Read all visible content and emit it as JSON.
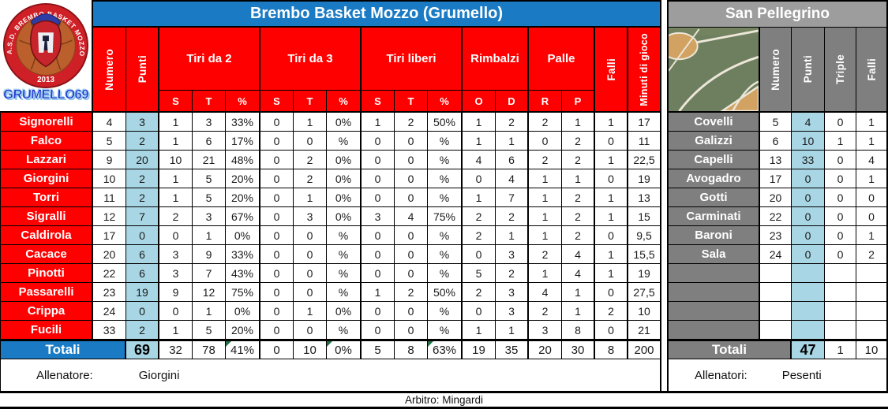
{
  "left_team": {
    "title": "Brembo Basket Mozzo (Grumello)",
    "logo": {
      "ring_text": "A.S.D. BREMBO BASKET MOZZO B.B.M.",
      "year": "2013",
      "club_name": "GRUMELLO69"
    },
    "col_headers": {
      "numero": "Numero",
      "punti": "Punti",
      "falli": "Falli",
      "minuti": "Minuti di gioco"
    },
    "groups": [
      {
        "label": "Tiri da 2",
        "subs": [
          "S",
          "T",
          "%"
        ]
      },
      {
        "label": "Tiri da 3",
        "subs": [
          "S",
          "T",
          "%"
        ]
      },
      {
        "label": "Tiri liberi",
        "subs": [
          "S",
          "T",
          "%"
        ]
      },
      {
        "label": "Rimbalzi",
        "subs": [
          "O",
          "D"
        ]
      },
      {
        "label": "Palle",
        "subs": [
          "R",
          "P"
        ]
      }
    ],
    "players": [
      {
        "name": "Signorelli",
        "vals": [
          "4",
          "3",
          "1",
          "3",
          "33%",
          "0",
          "1",
          "0%",
          "1",
          "2",
          "50%",
          "1",
          "2",
          "2",
          "1",
          "1",
          "17"
        ]
      },
      {
        "name": "Falco",
        "vals": [
          "5",
          "2",
          "1",
          "6",
          "17%",
          "0",
          "0",
          "%",
          "0",
          "0",
          "%",
          "1",
          "1",
          "0",
          "2",
          "0",
          "11"
        ]
      },
      {
        "name": "Lazzari",
        "vals": [
          "9",
          "20",
          "10",
          "21",
          "48%",
          "0",
          "2",
          "0%",
          "0",
          "0",
          "%",
          "4",
          "6",
          "2",
          "2",
          "1",
          "22,5"
        ]
      },
      {
        "name": "Giorgini",
        "vals": [
          "10",
          "2",
          "1",
          "5",
          "20%",
          "0",
          "2",
          "0%",
          "0",
          "0",
          "%",
          "0",
          "4",
          "1",
          "1",
          "0",
          "19"
        ]
      },
      {
        "name": "Torri",
        "vals": [
          "11",
          "2",
          "1",
          "5",
          "20%",
          "0",
          "1",
          "0%",
          "0",
          "0",
          "%",
          "1",
          "7",
          "1",
          "2",
          "1",
          "13"
        ]
      },
      {
        "name": "Sigralli",
        "vals": [
          "12",
          "7",
          "2",
          "3",
          "67%",
          "0",
          "3",
          "0%",
          "3",
          "4",
          "75%",
          "2",
          "2",
          "1",
          "2",
          "1",
          "15"
        ]
      },
      {
        "name": "Caldirola",
        "vals": [
          "17",
          "0",
          "0",
          "1",
          "0%",
          "0",
          "0",
          "%",
          "0",
          "0",
          "%",
          "2",
          "1",
          "1",
          "2",
          "0",
          "9,5"
        ]
      },
      {
        "name": "Cacace",
        "vals": [
          "20",
          "6",
          "3",
          "9",
          "33%",
          "0",
          "0",
          "%",
          "0",
          "0",
          "%",
          "0",
          "3",
          "2",
          "4",
          "1",
          "15,5"
        ]
      },
      {
        "name": "Pinotti",
        "vals": [
          "22",
          "6",
          "3",
          "7",
          "43%",
          "0",
          "0",
          "%",
          "0",
          "0",
          "%",
          "5",
          "2",
          "1",
          "4",
          "1",
          "19"
        ]
      },
      {
        "name": "Passarelli",
        "vals": [
          "23",
          "19",
          "9",
          "12",
          "75%",
          "0",
          "0",
          "%",
          "1",
          "2",
          "50%",
          "2",
          "3",
          "4",
          "1",
          "0",
          "27,5"
        ]
      },
      {
        "name": "Crippa",
        "vals": [
          "24",
          "0",
          "0",
          "1",
          "0%",
          "0",
          "1",
          "0%",
          "0",
          "0",
          "%",
          "0",
          "3",
          "2",
          "1",
          "2",
          "10"
        ]
      },
      {
        "name": "Fucili",
        "vals": [
          "33",
          "2",
          "1",
          "5",
          "20%",
          "0",
          "0",
          "%",
          "0",
          "0",
          "%",
          "1",
          "1",
          "3",
          "8",
          "0",
          "21"
        ]
      }
    ],
    "totals": {
      "label": "Totali",
      "punti": "69",
      "vals": [
        "32",
        "78",
        "41%",
        "0",
        "10",
        "0%",
        "5",
        "8",
        "63%",
        "19",
        "35",
        "20",
        "30",
        "8",
        "200"
      ]
    },
    "coach_label": "Allenatore:",
    "coach_name": "Giorgini"
  },
  "right_team": {
    "title": "San Pellegrino",
    "col_headers": [
      "Numero",
      "Punti",
      "Triple",
      "Falli"
    ],
    "players": [
      {
        "name": "Covelli",
        "vals": [
          "5",
          "4",
          "0",
          "1"
        ]
      },
      {
        "name": "Galizzi",
        "vals": [
          "6",
          "10",
          "1",
          "1"
        ]
      },
      {
        "name": "Capelli",
        "vals": [
          "13",
          "33",
          "0",
          "4"
        ]
      },
      {
        "name": "Avogadro",
        "vals": [
          "17",
          "0",
          "0",
          "1"
        ]
      },
      {
        "name": "Gotti",
        "vals": [
          "20",
          "0",
          "0",
          "0"
        ]
      },
      {
        "name": "Carminati",
        "vals": [
          "22",
          "0",
          "0",
          "0"
        ]
      },
      {
        "name": "Baroni",
        "vals": [
          "23",
          "0",
          "0",
          "1"
        ]
      },
      {
        "name": "Sala",
        "vals": [
          "24",
          "0",
          "0",
          "2"
        ]
      },
      {
        "name": "",
        "vals": [
          "",
          "",
          "",
          ""
        ]
      },
      {
        "name": "",
        "vals": [
          "",
          "",
          "",
          ""
        ]
      },
      {
        "name": "",
        "vals": [
          "",
          "",
          "",
          ""
        ]
      },
      {
        "name": "",
        "vals": [
          "",
          "",
          "",
          ""
        ]
      }
    ],
    "totals": {
      "label": "Totali",
      "punti": "47",
      "triple": "1",
      "falli": "10"
    },
    "coach_label": "Allenatori:",
    "coach_name": "Pesenti"
  },
  "footer": {
    "referee": "Arbitro: Mingardi"
  },
  "colors": {
    "header_blue": "#1a7bc4",
    "cell_red": "#fe0000",
    "light_blue": "#a9d6e4",
    "gray_title": "#9d9d9d",
    "gray_cell": "#7f7f7f",
    "flag_green": "#217346",
    "court_green": "#6e7f60",
    "court_tan": "#d2a263"
  }
}
